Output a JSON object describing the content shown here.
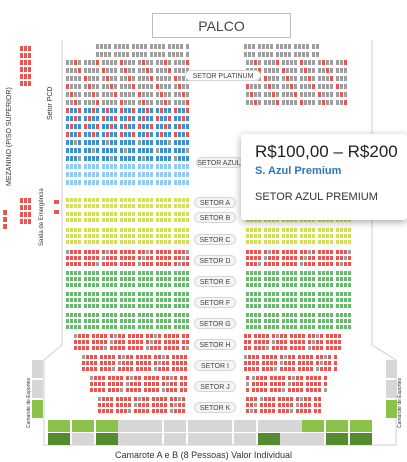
{
  "stage_label": "PALCO",
  "side_labels": {
    "mezanino": "MEZANINO (PISO SUPERIOR)",
    "setor_pcd": "Setor PCD",
    "saida": "Saída de Emergência",
    "camarote_left": "Camarote de Esportes",
    "camarote_right": "Camarote de Esportes"
  },
  "sectors": [
    {
      "key": "platinum",
      "label": "SETOR PLATINUM",
      "color": "#9e9e9e"
    },
    {
      "key": "azul",
      "label": "SETOR AZUL",
      "color": "#3d8fd6"
    },
    {
      "key": "A",
      "label": "SETOR A",
      "color": "#d4e157"
    },
    {
      "key": "B",
      "label": "SETOR B",
      "color": "#d4e157"
    },
    {
      "key": "C",
      "label": "SETOR C",
      "color": "#d4e157"
    },
    {
      "key": "D",
      "label": "SETOR D",
      "color": "#ef5350"
    },
    {
      "key": "E",
      "label": "SETOR E",
      "color": "#66bb6a"
    },
    {
      "key": "F",
      "label": "SETOR F",
      "color": "#66bb6a"
    },
    {
      "key": "G",
      "label": "SETOR G",
      "color": "#66bb6a"
    },
    {
      "key": "H",
      "label": "SETOR H",
      "color": "#ef5350"
    },
    {
      "key": "I",
      "label": "SETOR I",
      "color": "#ef5350"
    },
    {
      "key": "J",
      "label": "SETOR J",
      "color": "#ef5350"
    },
    {
      "key": "K",
      "label": "SETOR K",
      "color": "#ef5350"
    }
  ],
  "colors": {
    "available_red": "#ef5350",
    "sold_gray": "#9e9e9e",
    "blue": "#3d8fd6",
    "light_blue": "#90caf9",
    "yellow": "#d4e157",
    "green": "#66bb6a",
    "box_green": "#8bc34a",
    "box_dark_green": "#558b2f",
    "box_gray": "#d6d6d6"
  },
  "tooltip": {
    "price": "R$100,00 – R$200",
    "category": "S. Azul Premium",
    "sector": "SETOR AZUL PREMIUM"
  },
  "camarote_boxes": [
    "CAM",
    "CAM",
    "CAM",
    "CAM",
    "CAM",
    "CAM",
    "CAM",
    "CAM",
    "CAM",
    "CAM",
    "CAM",
    "CAM",
    "CAM",
    "CAM"
  ],
  "caption": "Camarote A e B (8 Pessoas) Valor Individual"
}
